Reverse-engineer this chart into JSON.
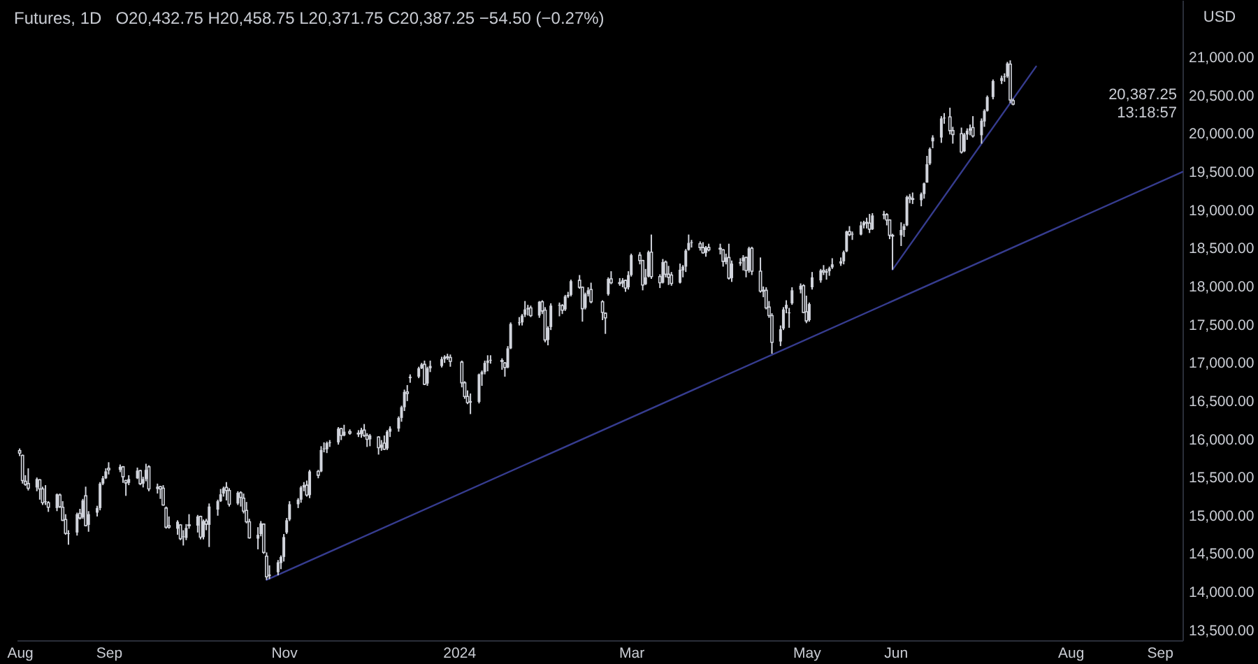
{
  "chart_data": {
    "type": "candlestick",
    "title": "Futures, 1D",
    "ylabel": "USD",
    "annotations": [
      "O20,432.75 H20,458.75 L20,371.75 C20,387.25 −54.50 (−0.27%)",
      "20,387.25",
      "13:18:57"
    ],
    "color": "#d1d4dc",
    "x": [
      "2023-08-01",
      "2023-08-02",
      "2023-08-03",
      "2023-08-04",
      "2023-08-07",
      "2023-08-08",
      "2023-08-09",
      "2023-08-10",
      "2023-08-11",
      "2023-08-14",
      "2023-08-15",
      "2023-08-16",
      "2023-08-17",
      "2023-08-18",
      "2023-08-21",
      "2023-08-22",
      "2023-08-23",
      "2023-08-24",
      "2023-08-25",
      "2023-08-28",
      "2023-08-29",
      "2023-08-30",
      "2023-08-31",
      "2023-09-01",
      "2023-09-05",
      "2023-09-06",
      "2023-09-07",
      "2023-09-08",
      "2023-09-11",
      "2023-09-12",
      "2023-09-13",
      "2023-09-14",
      "2023-09-15",
      "2023-09-18",
      "2023-09-19",
      "2023-09-20",
      "2023-09-21",
      "2023-09-22",
      "2023-09-25",
      "2023-09-26",
      "2023-09-27",
      "2023-09-28",
      "2023-09-29",
      "2023-10-02",
      "2023-10-03",
      "2023-10-04",
      "2023-10-05",
      "2023-10-06",
      "2023-10-09",
      "2023-10-10",
      "2023-10-11",
      "2023-10-12",
      "2023-10-13",
      "2023-10-16",
      "2023-10-17",
      "2023-10-18",
      "2023-10-19",
      "2023-10-20",
      "2023-10-23",
      "2023-10-24",
      "2023-10-25",
      "2023-10-26",
      "2023-10-27",
      "2023-10-30",
      "2023-10-31",
      "2023-11-01",
      "2023-11-02",
      "2023-11-03",
      "2023-11-06",
      "2023-11-07",
      "2023-11-08",
      "2023-11-09",
      "2023-11-10",
      "2023-11-13",
      "2023-11-14",
      "2023-11-15",
      "2023-11-16",
      "2023-11-17",
      "2023-11-20",
      "2023-11-21",
      "2023-11-22",
      "2023-11-24",
      "2023-11-27",
      "2023-11-28",
      "2023-11-29",
      "2023-11-30",
      "2023-12-01",
      "2023-12-04",
      "2023-12-05",
      "2023-12-06",
      "2023-12-07",
      "2023-12-08",
      "2023-12-11",
      "2023-12-12",
      "2023-12-13",
      "2023-12-14",
      "2023-12-15",
      "2023-12-18",
      "2023-12-19",
      "2023-12-20",
      "2023-12-21",
      "2023-12-22",
      "2023-12-26",
      "2023-12-27",
      "2023-12-28",
      "2023-12-29",
      "2024-01-02",
      "2024-01-03",
      "2024-01-04",
      "2024-01-05",
      "2024-01-08",
      "2024-01-09",
      "2024-01-10",
      "2024-01-11",
      "2024-01-12",
      "2024-01-16",
      "2024-01-17",
      "2024-01-18",
      "2024-01-19",
      "2024-01-22",
      "2024-01-23",
      "2024-01-24",
      "2024-01-25",
      "2024-01-26",
      "2024-01-29",
      "2024-01-30",
      "2024-01-31",
      "2024-02-01",
      "2024-02-02",
      "2024-02-05",
      "2024-02-06",
      "2024-02-07",
      "2024-02-08",
      "2024-02-09",
      "2024-02-12",
      "2024-02-13",
      "2024-02-14",
      "2024-02-15",
      "2024-02-16",
      "2024-02-20",
      "2024-02-21",
      "2024-02-22",
      "2024-02-23",
      "2024-02-26",
      "2024-02-27",
      "2024-02-28",
      "2024-02-29",
      "2024-03-01",
      "2024-03-04",
      "2024-03-05",
      "2024-03-06",
      "2024-03-07",
      "2024-03-08",
      "2024-03-11",
      "2024-03-12",
      "2024-03-13",
      "2024-03-14",
      "2024-03-15",
      "2024-03-18",
      "2024-03-19",
      "2024-03-20",
      "2024-03-21",
      "2024-03-22",
      "2024-03-25",
      "2024-03-26",
      "2024-03-27",
      "2024-03-28",
      "2024-04-01",
      "2024-04-02",
      "2024-04-03",
      "2024-04-04",
      "2024-04-05",
      "2024-04-08",
      "2024-04-09",
      "2024-04-10",
      "2024-04-11",
      "2024-04-12",
      "2024-04-15",
      "2024-04-16",
      "2024-04-17",
      "2024-04-18",
      "2024-04-19",
      "2024-04-22",
      "2024-04-23",
      "2024-04-24",
      "2024-04-25",
      "2024-04-26",
      "2024-04-29",
      "2024-04-30",
      "2024-05-01",
      "2024-05-02",
      "2024-05-03",
      "2024-05-06",
      "2024-05-07",
      "2024-05-08",
      "2024-05-09",
      "2024-05-10",
      "2024-05-13",
      "2024-05-14",
      "2024-05-15",
      "2024-05-16",
      "2024-05-17",
      "2024-05-20",
      "2024-05-21",
      "2024-05-22",
      "2024-05-23",
      "2024-05-24",
      "2024-05-28",
      "2024-05-29",
      "2024-05-30",
      "2024-05-31",
      "2024-06-03",
      "2024-06-04",
      "2024-06-05",
      "2024-06-06",
      "2024-06-07",
      "2024-06-10",
      "2024-06-11",
      "2024-06-12",
      "2024-06-13",
      "2024-06-14",
      "2024-06-17",
      "2024-06-18",
      "2024-06-20",
      "2024-06-21",
      "2024-06-24",
      "2024-06-25",
      "2024-06-26",
      "2024-06-27",
      "2024-06-28",
      "2024-07-01",
      "2024-07-02",
      "2024-07-03",
      "2024-07-05",
      "2024-07-08",
      "2024-07-09",
      "2024-07-10",
      "2024-07-11",
      "2024-07-12"
    ],
    "ohlc": [
      [
        15850,
        15880,
        15780,
        15820
      ],
      [
        15790,
        15800,
        15420,
        15460
      ],
      [
        15450,
        15530,
        15390,
        15410
      ],
      [
        15420,
        15620,
        15330,
        15360
      ],
      [
        15370,
        15500,
        15320,
        15480
      ],
      [
        15470,
        15480,
        15210,
        15350
      ],
      [
        15350,
        15380,
        15140,
        15170
      ],
      [
        15180,
        15400,
        15140,
        15190
      ],
      [
        15170,
        15190,
        15050,
        15110
      ],
      [
        15100,
        15290,
        15060,
        15280
      ],
      [
        15270,
        15290,
        15100,
        15120
      ],
      [
        15110,
        15190,
        14930,
        14940
      ],
      [
        14950,
        15020,
        14750,
        14770
      ],
      [
        14760,
        14810,
        14620,
        14770
      ],
      [
        14780,
        15040,
        14740,
        15020
      ],
      [
        15030,
        15090,
        14950,
        14970
      ],
      [
        14980,
        15220,
        14960,
        15200
      ],
      [
        15260,
        15380,
        14860,
        14870
      ],
      [
        14880,
        15060,
        14790,
        15020
      ],
      [
        15040,
        15130,
        14990,
        15100
      ],
      [
        15100,
        15440,
        15070,
        15420
      ],
      [
        15420,
        15520,
        15400,
        15490
      ],
      [
        15490,
        15620,
        15480,
        15580
      ],
      [
        15620,
        15700,
        15540,
        15600
      ],
      [
        15600,
        15670,
        15570,
        15640
      ],
      [
        15640,
        15650,
        15430,
        15510
      ],
      [
        15460,
        15470,
        15260,
        15430
      ],
      [
        15430,
        15530,
        15400,
        15480
      ],
      [
        15490,
        15630,
        15480,
        15590
      ],
      [
        15590,
        15600,
        15400,
        15420
      ],
      [
        15420,
        15510,
        15370,
        15480
      ],
      [
        15480,
        15680,
        15450,
        15600
      ],
      [
        15640,
        15660,
        15320,
        15350
      ],
      [
        15350,
        15420,
        15290,
        15380
      ],
      [
        15380,
        15390,
        15220,
        15350
      ],
      [
        15360,
        15400,
        15130,
        15140
      ],
      [
        15100,
        15120,
        14830,
        14850
      ],
      [
        14870,
        14990,
        14830,
        14850
      ],
      [
        14830,
        14940,
        14750,
        14920
      ],
      [
        14880,
        14890,
        14680,
        14700
      ],
      [
        14720,
        14810,
        14610,
        14730
      ],
      [
        14710,
        14890,
        14680,
        14840
      ],
      [
        14880,
        15020,
        14830,
        14870
      ],
      [
        14870,
        15010,
        14780,
        14990
      ],
      [
        14990,
        15000,
        14690,
        14720
      ],
      [
        14720,
        14950,
        14690,
        14930
      ],
      [
        14930,
        14960,
        14810,
        14890
      ],
      [
        14880,
        15160,
        14590,
        15120
      ],
      [
        15080,
        15210,
        15000,
        15190
      ],
      [
        15190,
        15350,
        15180,
        15280
      ],
      [
        15290,
        15380,
        15250,
        15360
      ],
      [
        15370,
        15440,
        15200,
        15330
      ],
      [
        15330,
        15360,
        15120,
        15150
      ],
      [
        15160,
        15320,
        15140,
        15300
      ],
      [
        15300,
        15320,
        15120,
        15240
      ],
      [
        15230,
        15290,
        15030,
        15060
      ],
      [
        15070,
        15180,
        14900,
        14920
      ],
      [
        14920,
        14960,
        14700,
        14710
      ],
      [
        14700,
        14850,
        14560,
        14750
      ],
      [
        14760,
        14930,
        14730,
        14900
      ],
      [
        14890,
        14900,
        14500,
        14520
      ],
      [
        14470,
        14520,
        14160,
        14200
      ],
      [
        14210,
        14350,
        14170,
        14230
      ],
      [
        14260,
        14420,
        14220,
        14390
      ],
      [
        14380,
        14480,
        14300,
        14460
      ],
      [
        14460,
        14760,
        14400,
        14720
      ],
      [
        14780,
        14970,
        14760,
        14940
      ],
      [
        14950,
        15190,
        14930,
        15150
      ],
      [
        15150,
        15230,
        15100,
        15210
      ],
      [
        15210,
        15390,
        15170,
        15370
      ],
      [
        15370,
        15440,
        15320,
        15400
      ],
      [
        15400,
        15460,
        15250,
        15270
      ],
      [
        15270,
        15600,
        15230,
        15580
      ],
      [
        15580,
        15600,
        15490,
        15530
      ],
      [
        15580,
        15910,
        15570,
        15860
      ],
      [
        15870,
        15960,
        15830,
        15880
      ],
      [
        15870,
        15970,
        15820,
        15950
      ],
      [
        15950,
        15990,
        15900,
        15960
      ],
      [
        15960,
        16160,
        15930,
        16140
      ],
      [
        16140,
        16150,
        15990,
        16050
      ],
      [
        16050,
        16190,
        16040,
        16100
      ],
      [
        16100,
        16130,
        16060,
        16080
      ],
      [
        16080,
        16120,
        16030,
        16070
      ],
      [
        16070,
        16150,
        16020,
        16120
      ],
      [
        16120,
        16200,
        16030,
        16050
      ],
      [
        16050,
        16080,
        15900,
        16000
      ],
      [
        16000,
        16070,
        15910,
        16050
      ],
      [
        16030,
        16040,
        15800,
        15890
      ],
      [
        15890,
        15990,
        15850,
        15930
      ],
      [
        15950,
        16050,
        15860,
        15870
      ],
      [
        15880,
        16120,
        15860,
        16100
      ],
      [
        16100,
        16170,
        16030,
        16140
      ],
      [
        16140,
        16300,
        16100,
        16280
      ],
      [
        16280,
        16440,
        16230,
        16420
      ],
      [
        16420,
        16650,
        16370,
        16620
      ],
      [
        16620,
        16710,
        16500,
        16600
      ],
      [
        16800,
        16850,
        16740,
        16820
      ],
      [
        16820,
        16950,
        16800,
        16930
      ],
      [
        16930,
        17000,
        16920,
        16980
      ],
      [
        16980,
        17030,
        16710,
        16720
      ],
      [
        16730,
        16950,
        16700,
        16930
      ],
      [
        16930,
        17030,
        16880,
        16960
      ],
      [
        16960,
        17080,
        16940,
        17050
      ],
      [
        17050,
        17100,
        17000,
        17080
      ],
      [
        17080,
        17120,
        17040,
        17070
      ],
      [
        17070,
        17110,
        16950,
        17020
      ],
      [
        17010,
        17030,
        16680,
        16740
      ],
      [
        16740,
        16760,
        16530,
        16560
      ],
      [
        16560,
        16640,
        16460,
        16480
      ],
      [
        16480,
        16600,
        16330,
        16500
      ],
      [
        16490,
        16860,
        16470,
        16850
      ],
      [
        16850,
        16900,
        16700,
        16880
      ],
      [
        16880,
        17030,
        16850,
        17000
      ],
      [
        17000,
        17100,
        16890,
        17030
      ],
      [
        17030,
        17100,
        16990,
        17040
      ],
      [
        17030,
        17060,
        16910,
        17020
      ],
      [
        17000,
        17010,
        16820,
        16940
      ],
      [
        16940,
        17220,
        16930,
        17190
      ],
      [
        17190,
        17530,
        17180,
        17510
      ],
      [
        17520,
        17600,
        17490,
        17530
      ],
      [
        17530,
        17640,
        17490,
        17620
      ],
      [
        17630,
        17810,
        17600,
        17700
      ],
      [
        17700,
        17760,
        17620,
        17720
      ],
      [
        17720,
        17750,
        17600,
        17620
      ],
      [
        17620,
        17810,
        17590,
        17800
      ],
      [
        17800,
        17820,
        17640,
        17680
      ],
      [
        17690,
        17730,
        17270,
        17300
      ],
      [
        17300,
        17480,
        17230,
        17460
      ],
      [
        17470,
        17780,
        17430,
        17750
      ],
      [
        17750,
        17790,
        17610,
        17760
      ],
      [
        17750,
        17770,
        17640,
        17690
      ],
      [
        17700,
        17890,
        17680,
        17870
      ],
      [
        17870,
        17930,
        17850,
        17890
      ],
      [
        17890,
        18090,
        17870,
        18070
      ],
      [
        18080,
        18150,
        17970,
        17990
      ],
      [
        17990,
        18000,
        17540,
        17710
      ],
      [
        17720,
        17920,
        17700,
        17900
      ],
      [
        17900,
        17990,
        17870,
        17950
      ],
      [
        17960,
        18050,
        17780,
        17800
      ],
      [
        17800,
        17820,
        17560,
        17660
      ],
      [
        17650,
        17660,
        17380,
        17590
      ],
      [
        17900,
        18120,
        17880,
        18100
      ],
      [
        18100,
        18200,
        18030,
        18050
      ],
      [
        18050,
        18110,
        18010,
        18040
      ],
      [
        18040,
        18110,
        17990,
        18080
      ],
      [
        18080,
        18090,
        17930,
        17980
      ],
      [
        17990,
        18200,
        17960,
        18150
      ],
      [
        18150,
        18430,
        18130,
        18410
      ],
      [
        18410,
        18450,
        18290,
        18340
      ],
      [
        18340,
        18350,
        17950,
        18020
      ],
      [
        18030,
        18230,
        18020,
        18120
      ],
      [
        18130,
        18470,
        18120,
        18450
      ],
      [
        18450,
        18680,
        18100,
        18130
      ],
      [
        18130,
        18160,
        17980,
        18050
      ],
      [
        18050,
        18360,
        18040,
        18320
      ],
      [
        18320,
        18340,
        18120,
        18160
      ],
      [
        18160,
        18270,
        18020,
        18120
      ],
      [
        18150,
        18190,
        18010,
        18040
      ],
      [
        18050,
        18300,
        18040,
        18220
      ],
      [
        18210,
        18280,
        18120,
        18260
      ],
      [
        18260,
        18490,
        18190,
        18470
      ],
      [
        18480,
        18680,
        18470,
        18570
      ],
      [
        18570,
        18610,
        18510,
        18580
      ],
      [
        18560,
        18590,
        18470,
        18510
      ],
      [
        18510,
        18580,
        18430,
        18440
      ],
      [
        18440,
        18530,
        18390,
        18510
      ],
      [
        18510,
        18560,
        18460,
        18480
      ],
      [
        18500,
        18560,
        18420,
        18490
      ],
      [
        18480,
        18490,
        18260,
        18330
      ],
      [
        18320,
        18430,
        18290,
        18380
      ],
      [
        18380,
        18560,
        18090,
        18110
      ],
      [
        18110,
        18340,
        18060,
        18300
      ],
      [
        18300,
        18370,
        18270,
        18320
      ],
      [
        18330,
        18410,
        18210,
        18380
      ],
      [
        18380,
        18390,
        18120,
        18210
      ],
      [
        18210,
        18520,
        18180,
        18500
      ],
      [
        18500,
        18520,
        18150,
        18200
      ],
      [
        18200,
        18380,
        17920,
        17940
      ],
      [
        17950,
        18000,
        17860,
        17940
      ],
      [
        17950,
        17990,
        17700,
        17720
      ],
      [
        17730,
        17810,
        17590,
        17620
      ],
      [
        17620,
        17650,
        17120,
        17270
      ],
      [
        17280,
        17490,
        17220,
        17440
      ],
      [
        17450,
        17730,
        17430,
        17700
      ],
      [
        17710,
        17820,
        17650,
        17760
      ],
      [
        17650,
        17720,
        17460,
        17660
      ],
      [
        17780,
        17990,
        17760,
        17950
      ],
      [
        17960,
        18040,
        17910,
        18010
      ],
      [
        18010,
        18030,
        17650,
        17660
      ],
      [
        17670,
        17880,
        17520,
        17550
      ],
      [
        17560,
        17790,
        17540,
        17770
      ],
      [
        17990,
        18190,
        17960,
        18120
      ],
      [
        18080,
        18230,
        18050,
        18210
      ],
      [
        18210,
        18280,
        18150,
        18190
      ],
      [
        18180,
        18230,
        18090,
        18200
      ],
      [
        18200,
        18260,
        18140,
        18240
      ],
      [
        18250,
        18370,
        18230,
        18290
      ],
      [
        18300,
        18380,
        18270,
        18330
      ],
      [
        18330,
        18470,
        18290,
        18450
      ],
      [
        18460,
        18730,
        18450,
        18720
      ],
      [
        18720,
        18790,
        18660,
        18680
      ],
      [
        18680,
        18720,
        18610,
        18690
      ],
      [
        18680,
        18850,
        18670,
        18800
      ],
      [
        18800,
        18860,
        18760,
        18840
      ],
      [
        18840,
        18900,
        18760,
        18830
      ],
      [
        18830,
        18950,
        18700,
        18750
      ],
      [
        18750,
        18960,
        18740,
        18930
      ],
      [
        18930,
        18990,
        18880,
        18950
      ],
      [
        18940,
        18960,
        18800,
        18870
      ],
      [
        18870,
        18880,
        18620,
        18670
      ],
      [
        18670,
        18690,
        18220,
        18660
      ],
      [
        18670,
        18840,
        18530,
        18740
      ],
      [
        18740,
        18820,
        18650,
        18790
      ],
      [
        18800,
        19190,
        18790,
        19170
      ],
      [
        19170,
        19210,
        19090,
        19150
      ],
      [
        19150,
        19230,
        19080,
        19140
      ],
      [
        19130,
        19230,
        19050,
        19210
      ],
      [
        19210,
        19360,
        19150,
        19350
      ],
      [
        19360,
        19710,
        19360,
        19600
      ],
      [
        19610,
        19820,
        19590,
        19800
      ],
      [
        19900,
        19980,
        19810,
        19950
      ],
      [
        19950,
        20230,
        19880,
        20200
      ],
      [
        20200,
        20270,
        20130,
        20210
      ],
      [
        20220,
        20340,
        19990,
        20040
      ],
      [
        20040,
        20090,
        19870,
        19990
      ],
      [
        20000,
        20080,
        19740,
        19760
      ],
      [
        19770,
        20010,
        19760,
        19990
      ],
      [
        19990,
        20070,
        19920,
        20040
      ],
      [
        20040,
        20120,
        19980,
        20070
      ],
      [
        20080,
        20230,
        19950,
        19970
      ],
      [
        19980,
        20200,
        19870,
        20170
      ],
      [
        20160,
        20320,
        20090,
        20300
      ],
      [
        20300,
        20500,
        20290,
        20480
      ],
      [
        20480,
        20710,
        20450,
        20690
      ],
      [
        20690,
        20760,
        20650,
        20730
      ],
      [
        20740,
        20790,
        20680,
        20750
      ],
      [
        20750,
        20940,
        20730,
        20920
      ],
      [
        20910,
        20960,
        20400,
        20441.75
      ],
      [
        20432.75,
        20458.75,
        20371.75,
        20387.25
      ]
    ],
    "series": [
      {
        "type": "line",
        "color": "#363c8f",
        "x": [
          "2023-10-26",
          "2024-09-09"
        ],
        "values": [
          14160,
          19500
        ]
      },
      {
        "type": "line",
        "color": "#363c8f",
        "x": [
          "2024-05-31",
          "2024-07-20"
        ],
        "values": [
          18220,
          20880
        ]
      }
    ],
    "xlim": [
      "2023-07-31",
      "2024-09-09"
    ],
    "xticks": [
      {
        "value": "2023-08-01",
        "label": "Aug"
      },
      {
        "value": "2023-09-01",
        "label": "Sep"
      },
      {
        "value": "2023-11-01",
        "label": "Nov"
      },
      {
        "value": "2024-01-01",
        "label": "2024"
      },
      {
        "value": "2024-03-01",
        "label": "Mar"
      },
      {
        "value": "2024-05-01",
        "label": "May"
      },
      {
        "value": "2024-06-01",
        "label": "Jun"
      },
      {
        "value": "2024-08-01",
        "label": "Aug"
      },
      {
        "value": "2024-09-01",
        "label": "Sep"
      }
    ],
    "ylim": [
      13370,
      21750
    ],
    "yticks": [
      {
        "value": 13500,
        "label": "13,500.00"
      },
      {
        "value": 14000,
        "label": "14,000.00"
      },
      {
        "value": 14500,
        "label": "14,500.00"
      },
      {
        "value": 15000,
        "label": "15,000.00"
      },
      {
        "value": 15500,
        "label": "15,500.00"
      },
      {
        "value": 16000,
        "label": "16,000.00"
      },
      {
        "value": 16500,
        "label": "16,500.00"
      },
      {
        "value": 17000,
        "label": "17,000.00"
      },
      {
        "value": 17500,
        "label": "17,500.00"
      },
      {
        "value": 18000,
        "label": "18,000.00"
      },
      {
        "value": 18500,
        "label": "18,500.00"
      },
      {
        "value": 19000,
        "label": "19,000.00"
      },
      {
        "value": 19500,
        "label": "19,500.00"
      },
      {
        "value": 20000,
        "label": "20,000.00"
      },
      {
        "value": 20500,
        "label": "20,500.00"
      },
      {
        "value": 21000,
        "label": "21,000.00"
      }
    ]
  }
}
